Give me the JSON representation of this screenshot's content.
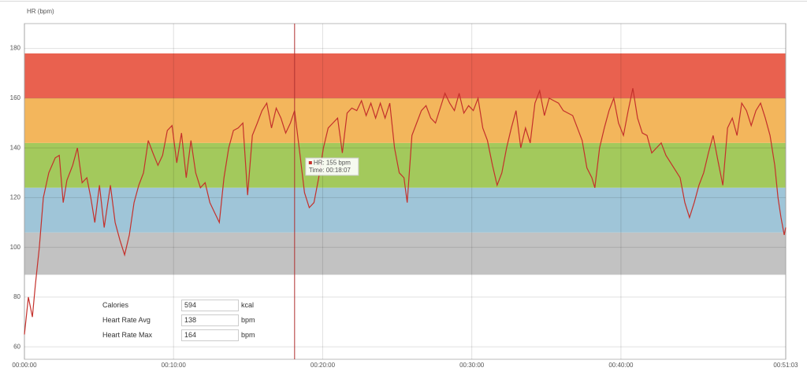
{
  "chart_data": {
    "type": "line",
    "y_label": "HR (bpm)",
    "ylim": [
      55,
      190
    ],
    "yticks": [
      60,
      80,
      100,
      120,
      140,
      160,
      180
    ],
    "xlim": [
      0,
      3063
    ],
    "xticks": [
      {
        "value": 0,
        "label": "00:00:00"
      },
      {
        "value": 600,
        "label": "00:10:00"
      },
      {
        "value": 1200,
        "label": "00:20:00"
      },
      {
        "value": 1800,
        "label": "00:30:00"
      },
      {
        "value": 2400,
        "label": "00:40:00"
      },
      {
        "value": 3063,
        "label": "00:51:03"
      }
    ],
    "grid": true,
    "zones": [
      {
        "from": 89,
        "to": 106,
        "color": "#c2c2c2"
      },
      {
        "from": 106,
        "to": 124,
        "color": "#9fc5d8"
      },
      {
        "from": 124,
        "to": 142,
        "color": "#a3c95c"
      },
      {
        "from": 142,
        "to": 160,
        "color": "#f3b65c"
      },
      {
        "from": 160,
        "to": 178,
        "color": "#e9614f"
      }
    ],
    "x": [
      0,
      16,
      32,
      44,
      60,
      76,
      98,
      124,
      140,
      156,
      171,
      194,
      213,
      232,
      251,
      267,
      283,
      302,
      321,
      346,
      365,
      384,
      403,
      422,
      441,
      460,
      479,
      498,
      517,
      537,
      556,
      575,
      594,
      613,
      632,
      651,
      670,
      689,
      708,
      727,
      746,
      765,
      784,
      803,
      822,
      841,
      860,
      879,
      898,
      917,
      937,
      956,
      975,
      994,
      1013,
      1032,
      1051,
      1070,
      1087,
      1108,
      1127,
      1146,
      1165,
      1184,
      1203,
      1222,
      1241,
      1260,
      1279,
      1298,
      1317,
      1337,
      1356,
      1375,
      1394,
      1413,
      1432,
      1451,
      1470,
      1489,
      1508,
      1527,
      1540,
      1559,
      1578,
      1597,
      1616,
      1635,
      1654,
      1673,
      1692,
      1711,
      1730,
      1749,
      1768,
      1787,
      1806,
      1825,
      1844,
      1863,
      1883,
      1902,
      1921,
      1940,
      1959,
      1978,
      1997,
      2016,
      2035,
      2054,
      2073,
      2092,
      2111,
      2130,
      2149,
      2168,
      2187,
      2206,
      2225,
      2244,
      2263,
      2283,
      2295,
      2314,
      2333,
      2352,
      2371,
      2390,
      2410,
      2429,
      2448,
      2467,
      2486,
      2505,
      2524,
      2543,
      2562,
      2581,
      2600,
      2619,
      2638,
      2657,
      2676,
      2695,
      2714,
      2733,
      2752,
      2771,
      2790,
      2810,
      2829,
      2848,
      2867,
      2886,
      2905,
      2924,
      2943,
      2962,
      2981,
      3000,
      3019,
      3032,
      3044,
      3057,
      3063
    ],
    "series": [
      {
        "name": "HR",
        "color": "#c4302b",
        "values": [
          65,
          80,
          72,
          85,
          100,
          120,
          130,
          136,
          137,
          118,
          127,
          133,
          140,
          126,
          128,
          120,
          110,
          125,
          108,
          125,
          110,
          103,
          97,
          105,
          118,
          125,
          130,
          143,
          138,
          133,
          137,
          147,
          149,
          134,
          146,
          128,
          143,
          130,
          124,
          126,
          118,
          114,
          110,
          128,
          140,
          147,
          148,
          150,
          121,
          145,
          150,
          155,
          158,
          148,
          156,
          152,
          146,
          150,
          155,
          138,
          122,
          116,
          118,
          128,
          140,
          148,
          150,
          152,
          138,
          154,
          156,
          155,
          159,
          153,
          158,
          152,
          158,
          152,
          158,
          140,
          130,
          128,
          118,
          145,
          150,
          155,
          157,
          152,
          150,
          156,
          162,
          158,
          155,
          162,
          154,
          157,
          155,
          160,
          148,
          143,
          133,
          125,
          130,
          140,
          148,
          155,
          140,
          148,
          142,
          158,
          163,
          153,
          160,
          159,
          158,
          155,
          154,
          153,
          148,
          143,
          132,
          128,
          124,
          140,
          148,
          155,
          160,
          150,
          145,
          155,
          164,
          152,
          146,
          145,
          138,
          140,
          142,
          137,
          134,
          131,
          128,
          118,
          112,
          118,
          125,
          130,
          138,
          145,
          135,
          125,
          148,
          152,
          145,
          158,
          155,
          149,
          155,
          158,
          152,
          145,
          133,
          120,
          112,
          105,
          108
        ]
      }
    ],
    "crosshair": {
      "x": 1087,
      "lines": [
        "HR: 155 bpm",
        "Time: 00:18:07"
      ]
    },
    "summary": [
      {
        "label": "Calories",
        "value": 594,
        "unit": "kcal"
      },
      {
        "label": "Heart Rate Avg",
        "value": 138,
        "unit": "bpm"
      },
      {
        "label": "Heart Rate Max",
        "value": 164,
        "unit": "bpm"
      }
    ]
  }
}
